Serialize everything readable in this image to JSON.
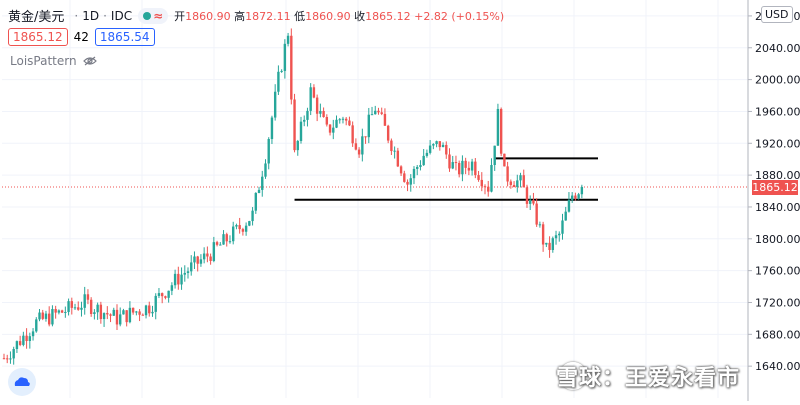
{
  "legend": {
    "symbol": "黄金/美元",
    "interval": "1D",
    "source": "IDC",
    "approx": "≈",
    "open_label": "开",
    "open": "1860.90",
    "high_label": "高",
    "high": "1872.11",
    "low_label": "低",
    "low": "1860.90",
    "close_label": "收",
    "close": "1865.12",
    "change": "+2.82 (+0.15%)"
  },
  "price_boxes": {
    "bid": "1865.12",
    "spread": "42",
    "ask": "1865.54"
  },
  "indicator": {
    "name": "LoisPattern"
  },
  "currency_button": "USD",
  "watermark": "雪球：王爱永看市",
  "colors": {
    "up": "#26a69a",
    "down": "#ef5350",
    "axis_text": "#131722",
    "grid": "#f0f3fa"
  },
  "chart_data": {
    "type": "candlestick",
    "last_price": 1865.12,
    "last_price_label": "1865.12",
    "ylim": [
      1600,
      2100
    ],
    "yticks": [
      1640,
      1680,
      1720,
      1760,
      1800,
      1840,
      1880,
      1920,
      1960,
      2000,
      2040,
      2080
    ],
    "ytick_labels": [
      "1640.00",
      "1680.00",
      "1720.00",
      "1760.00",
      "1800.00",
      "1840.00",
      "1880.00",
      "1920.00",
      "1960.00",
      "2000.00",
      "2040.00",
      "2080.00"
    ],
    "horizontal_lines": [
      {
        "price": 1849,
        "bar_from": 90,
        "bar_to": 184
      },
      {
        "price": 1901,
        "bar_from": 152,
        "bar_to": 184
      }
    ],
    "anchors": [
      [
        0,
        1650
      ],
      [
        10,
        1695
      ],
      [
        25,
        1720
      ],
      [
        35,
        1700
      ],
      [
        45,
        1715
      ],
      [
        55,
        1755
      ],
      [
        65,
        1785
      ],
      [
        72,
        1810
      ],
      [
        77,
        1830
      ],
      [
        81,
        1905
      ],
      [
        85,
        2000
      ],
      [
        88,
        2060
      ],
      [
        90,
        1905
      ],
      [
        95,
        1985
      ],
      [
        100,
        1935
      ],
      [
        105,
        1955
      ],
      [
        110,
        1915
      ],
      [
        115,
        1965
      ],
      [
        120,
        1920
      ],
      [
        125,
        1870
      ],
      [
        130,
        1905
      ],
      [
        135,
        1920
      ],
      [
        140,
        1885
      ],
      [
        145,
        1895
      ],
      [
        150,
        1865
      ],
      [
        153,
        1955
      ],
      [
        155,
        1880
      ],
      [
        160,
        1870
      ],
      [
        165,
        1825
      ],
      [
        168,
        1785
      ],
      [
        172,
        1805
      ],
      [
        176,
        1855
      ],
      [
        179,
        1865
      ]
    ]
  }
}
